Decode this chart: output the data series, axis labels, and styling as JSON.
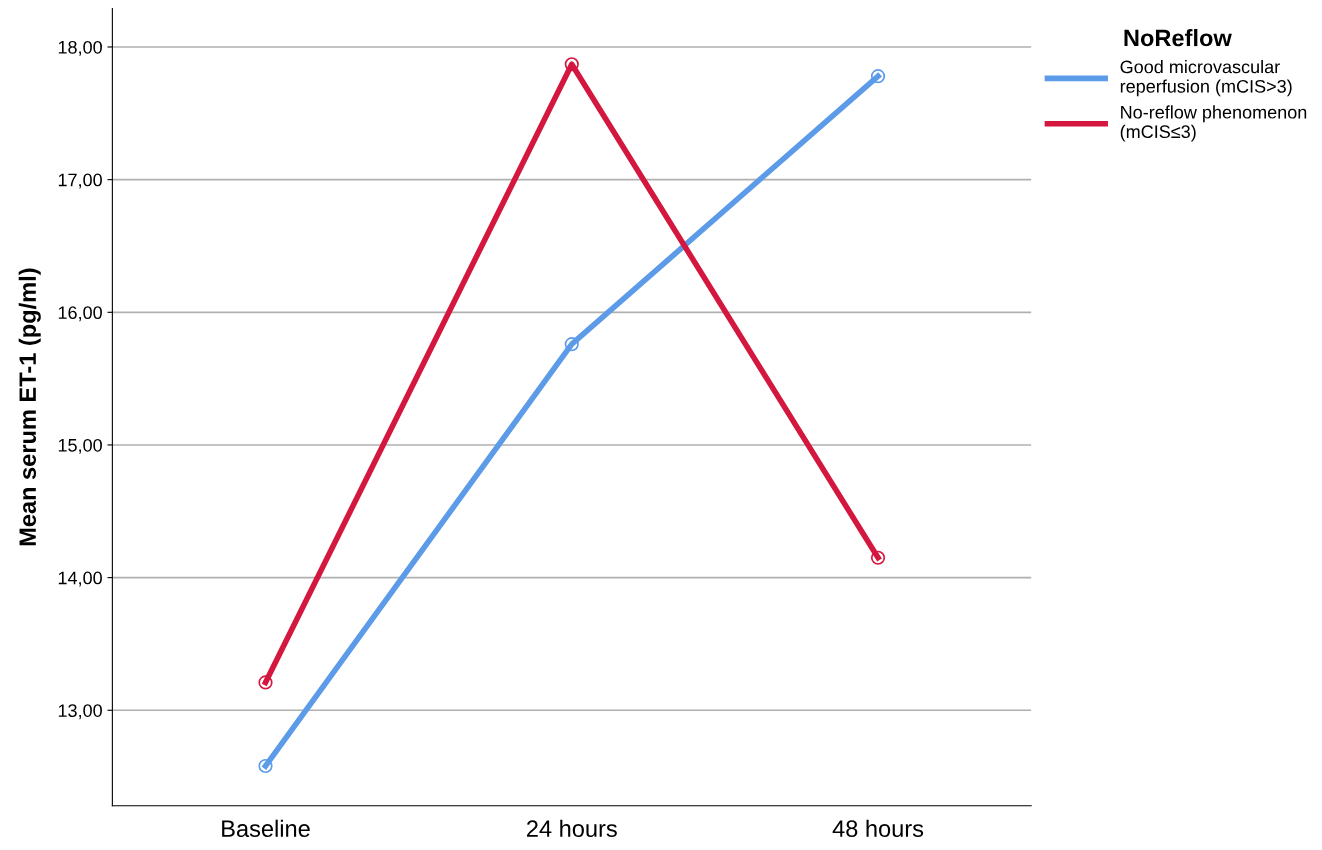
{
  "chart_data": {
    "type": "line",
    "ylabel": "Mean serum ET-1 (pg/ml)",
    "legend_title": "NoReflow",
    "categories": [
      "Baseline",
      "24 hours",
      "48 hours"
    ],
    "series": [
      {
        "name": "Good microvascular\nreperfusion (mCIS>3)",
        "color": "#5b9be8",
        "values": [
          12.58,
          15.76,
          17.78
        ]
      },
      {
        "name": "No-reflow phenomenon\n(mCIS≤3)",
        "color": "#d4173f",
        "values": [
          13.21,
          17.87,
          14.15
        ]
      }
    ],
    "ylim": [
      12.28,
      18.29
    ],
    "yticks": [
      {
        "value": 13,
        "label": "13,00"
      },
      {
        "value": 14,
        "label": "14,00"
      },
      {
        "value": 15,
        "label": "15,00"
      },
      {
        "value": 16,
        "label": "16,00"
      },
      {
        "value": 17,
        "label": "17,00"
      },
      {
        "value": 18,
        "label": "18,00"
      }
    ],
    "grid": "y",
    "legend": "top right",
    "marker": "circle",
    "line_style": "solid"
  }
}
